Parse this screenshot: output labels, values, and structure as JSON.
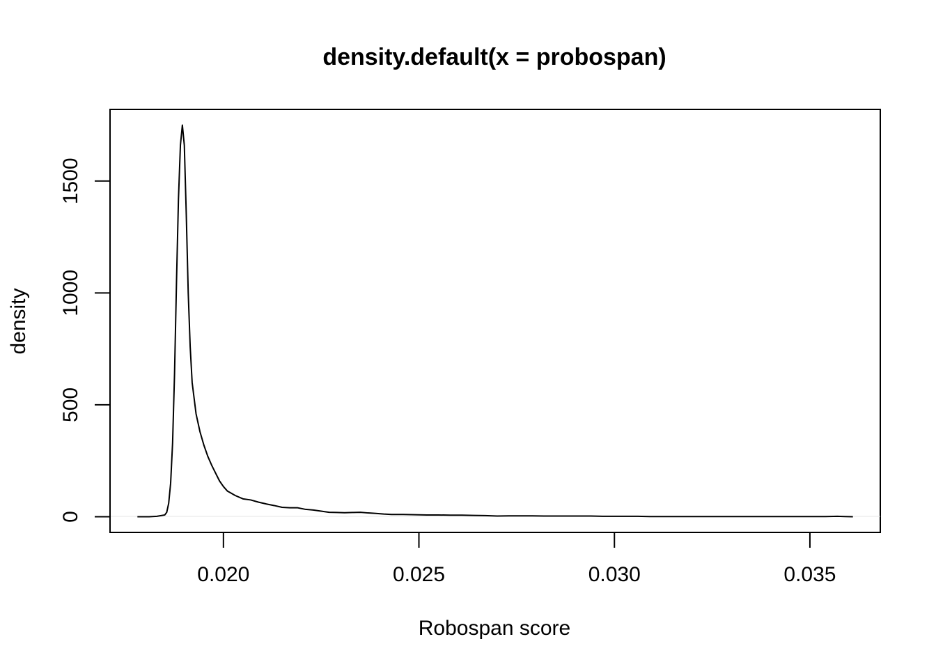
{
  "chart_data": {
    "type": "line",
    "title": "density.default(x = probospan)",
    "xlabel": "Robospan score",
    "ylabel": "density",
    "xlim": [
      0.0171,
      0.0368
    ],
    "ylim": [
      -70,
      1820
    ],
    "x_ticks": [
      0.02,
      0.025,
      0.03,
      0.035
    ],
    "x_tick_labels": [
      "0.020",
      "0.025",
      "0.030",
      "0.035"
    ],
    "y_ticks": [
      0,
      500,
      1000,
      1500
    ],
    "y_tick_labels": [
      "0",
      "500",
      "1000",
      "1500"
    ],
    "grid": false,
    "legend": "none",
    "series": [
      {
        "color": "#000000",
        "x": [
          0.0178,
          0.0181,
          0.0183,
          0.0185,
          0.01855,
          0.0186,
          0.01865,
          0.0187,
          0.01875,
          0.0188,
          0.01885,
          0.0189,
          0.01895,
          0.019,
          0.01905,
          0.0191,
          0.01915,
          0.0192,
          0.0193,
          0.0194,
          0.0195,
          0.0196,
          0.0197,
          0.0198,
          0.0199,
          0.02,
          0.0201,
          0.0202,
          0.0203,
          0.0205,
          0.0207,
          0.0209,
          0.0211,
          0.0213,
          0.0215,
          0.0217,
          0.0219,
          0.0221,
          0.0223,
          0.0225,
          0.0227,
          0.0229,
          0.0231,
          0.0233,
          0.0235,
          0.0237,
          0.0239,
          0.0241,
          0.0243,
          0.0246,
          0.0249,
          0.0252,
          0.0255,
          0.0258,
          0.0261,
          0.0264,
          0.0267,
          0.027,
          0.0273,
          0.0276,
          0.0279,
          0.0282,
          0.0285,
          0.0288,
          0.0291,
          0.0294,
          0.0297,
          0.03,
          0.0303,
          0.0306,
          0.0309,
          0.0312,
          0.0315,
          0.0318,
          0.0321,
          0.0324,
          0.0327,
          0.033,
          0.0333,
          0.0336,
          0.0339,
          0.0342,
          0.0345,
          0.0348,
          0.0351,
          0.0354,
          0.0357,
          0.0359,
          0.0361
        ],
        "y": [
          0,
          0,
          2,
          8,
          20,
          60,
          150,
          330,
          640,
          1050,
          1420,
          1660,
          1750,
          1660,
          1350,
          1000,
          760,
          600,
          460,
          380,
          320,
          270,
          230,
          195,
          160,
          135,
          115,
          105,
          95,
          80,
          75,
          65,
          57,
          50,
          42,
          40,
          40,
          33,
          30,
          25,
          20,
          19,
          18,
          19,
          20,
          17,
          15,
          12,
          10,
          10,
          9,
          8,
          8,
          7,
          7,
          6,
          5,
          3,
          4,
          4,
          4,
          3,
          3,
          3,
          3,
          3,
          2,
          2,
          2,
          2,
          1,
          1,
          1,
          1,
          1,
          1,
          1,
          1,
          1,
          1,
          1,
          1,
          1,
          1,
          1,
          1,
          2,
          1,
          0
        ]
      }
    ]
  }
}
